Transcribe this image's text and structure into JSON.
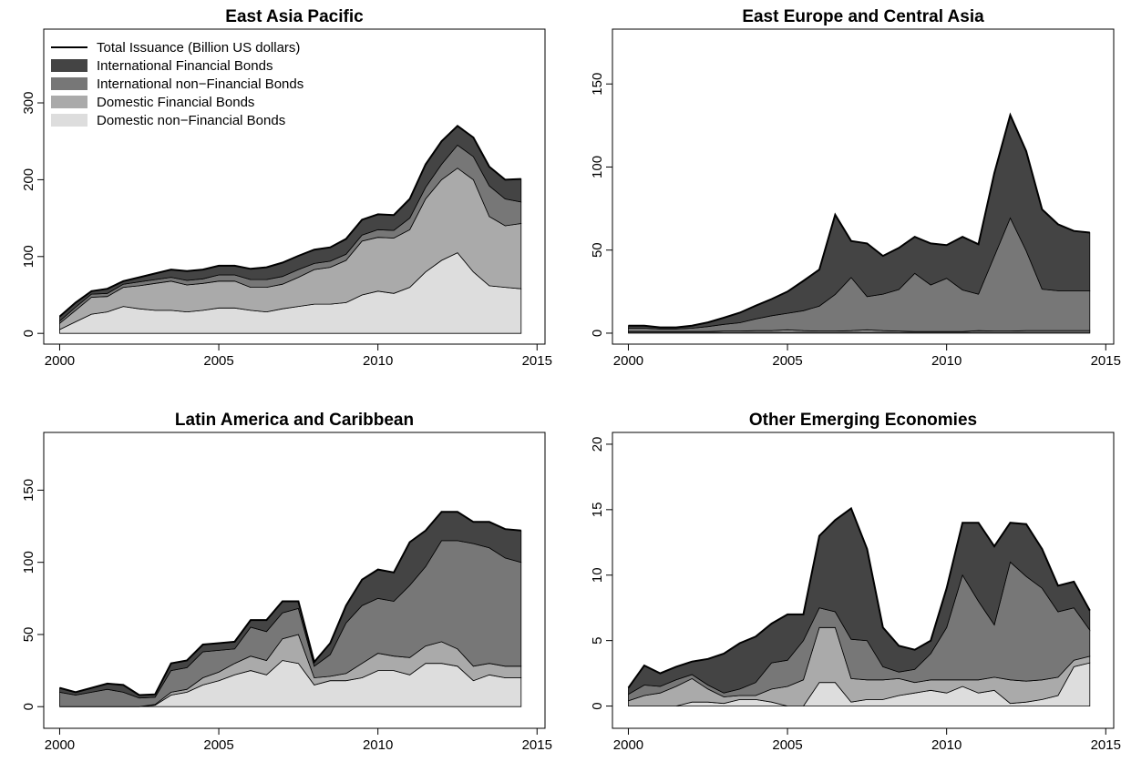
{
  "chart_data": [
    {
      "type": "stacked-area",
      "title": "East Asia Pacific",
      "legend": "topleft",
      "total_name": "Total Issuance (Billion US dollars)",
      "total_color": "#000000",
      "x": [
        2000,
        2000.5,
        2001,
        2001.5,
        2002,
        2002.5,
        2003,
        2003.5,
        2004,
        2004.5,
        2005,
        2005.5,
        2006,
        2006.5,
        2007,
        2007.5,
        2008,
        2008.5,
        2009,
        2009.5,
        2010,
        2010.5,
        2011,
        2011.5,
        2012,
        2012.5,
        2013,
        2013.5,
        2014,
        2014.5
      ],
      "xlim": [
        1999.5,
        2015.25
      ],
      "xticks": [
        2000,
        2005,
        2010,
        2015
      ],
      "ylim": [
        -14,
        396
      ],
      "yticks": [
        0,
        100,
        200,
        300
      ],
      "series": [
        {
          "name": "Domestic non−Financial Bonds",
          "color": "#dddddd",
          "values": [
            5,
            15,
            25,
            28,
            35,
            32,
            30,
            30,
            28,
            30,
            33,
            33,
            30,
            28,
            32,
            35,
            38,
            38,
            40,
            50,
            55,
            52,
            60,
            80,
            95,
            105,
            80,
            62,
            60,
            58
          ]
        },
        {
          "name": "Domestic Financial Bonds",
          "color": "#aaaaaa",
          "values": [
            8,
            15,
            22,
            20,
            25,
            30,
            35,
            38,
            35,
            35,
            35,
            35,
            30,
            32,
            32,
            38,
            45,
            48,
            55,
            70,
            70,
            72,
            75,
            95,
            105,
            110,
            120,
            90,
            80,
            85
          ]
        },
        {
          "name": "International non−Financial Bonds",
          "color": "#777777",
          "values": [
            3,
            4,
            4,
            4,
            4,
            5,
            5,
            5,
            6,
            6,
            8,
            8,
            10,
            10,
            10,
            10,
            8,
            8,
            8,
            8,
            10,
            10,
            15,
            15,
            20,
            30,
            30,
            40,
            35,
            28
          ]
        },
        {
          "name": "International Financial Bonds",
          "color": "#444444",
          "values": [
            6,
            6,
            4,
            6,
            4,
            6,
            8,
            10,
            12,
            12,
            12,
            12,
            14,
            16,
            18,
            18,
            18,
            18,
            20,
            20,
            20,
            20,
            25,
            30,
            30,
            25,
            25,
            25,
            25,
            30
          ]
        }
      ]
    },
    {
      "type": "stacked-area",
      "title": "East Europe and Central Asia",
      "x": [
        2000,
        2000.5,
        2001,
        2001.5,
        2002,
        2002.5,
        2003,
        2003.5,
        2004,
        2004.5,
        2005,
        2005.5,
        2006,
        2006.5,
        2007,
        2007.5,
        2008,
        2008.5,
        2009,
        2009.5,
        2010,
        2010.5,
        2011,
        2011.5,
        2012,
        2012.5,
        2013,
        2013.5,
        2014,
        2014.5
      ],
      "xlim": [
        1999.5,
        2015.25
      ],
      "xticks": [
        2000,
        2005,
        2010,
        2015
      ],
      "ylim": [
        -6.6,
        183
      ],
      "yticks": [
        0,
        50,
        100,
        150
      ],
      "series": [
        {
          "color": "#dddddd",
          "values": [
            0.5,
            0.5,
            0.5,
            0.5,
            0.5,
            0.5,
            0.5,
            0.5,
            0.5,
            0.5,
            0.5,
            0.5,
            0.5,
            0.5,
            0.5,
            0.5,
            0.5,
            0.5,
            0.5,
            0.5,
            0.5,
            0.5,
            0.5,
            0.5,
            0.5,
            0.5,
            0.5,
            0.5,
            0.5,
            0.5
          ]
        },
        {
          "color": "#aaaaaa",
          "values": [
            0.5,
            0.5,
            0.5,
            0.5,
            0.5,
            0.5,
            0.8,
            0.8,
            1,
            1,
            1.5,
            1,
            0.8,
            0.8,
            1,
            1.5,
            1,
            0.8,
            0.5,
            0.5,
            0.5,
            0.5,
            1,
            0.8,
            0.8,
            1,
            1,
            1,
            1,
            1
          ]
        },
        {
          "color": "#777777",
          "values": [
            2,
            2,
            1.5,
            1.5,
            2,
            3,
            4,
            5,
            7,
            9,
            10,
            12,
            15,
            22,
            32,
            20,
            22,
            25,
            35,
            28,
            32,
            25,
            22,
            45,
            68,
            48,
            25,
            24,
            24,
            24
          ]
        },
        {
          "color": "#444444",
          "values": [
            1.5,
            1.5,
            1,
            1,
            1.5,
            2.5,
            4,
            6,
            8,
            10,
            13,
            18,
            22,
            48,
            22,
            32,
            23,
            25,
            22,
            25,
            20,
            32,
            30,
            50,
            62,
            60,
            48,
            40,
            36,
            35
          ]
        }
      ]
    },
    {
      "type": "stacked-area",
      "title": "Latin America and Caribbean",
      "x": [
        2000,
        2000.5,
        2001,
        2001.5,
        2002,
        2002.5,
        2003,
        2003.5,
        2004,
        2004.5,
        2005,
        2005.5,
        2006,
        2006.5,
        2007,
        2007.5,
        2008,
        2008.5,
        2009,
        2009.5,
        2010,
        2010.5,
        2011,
        2011.5,
        2012,
        2012.5,
        2013,
        2013.5,
        2014,
        2014.5
      ],
      "xlim": [
        1999.5,
        2015.25
      ],
      "xticks": [
        2000,
        2005,
        2010,
        2015
      ],
      "ylim": [
        -15,
        190
      ],
      "yticks": [
        0,
        50,
        100,
        150
      ],
      "series": [
        {
          "color": "#dddddd",
          "values": [
            0,
            0,
            0,
            0,
            0,
            0,
            1,
            8,
            10,
            15,
            18,
            22,
            25,
            22,
            32,
            30,
            15,
            18,
            18,
            20,
            25,
            25,
            22,
            30,
            30,
            28,
            18,
            22,
            20,
            20
          ]
        },
        {
          "color": "#aaaaaa",
          "values": [
            0,
            0,
            0,
            0,
            0,
            0,
            0.5,
            2,
            2,
            5,
            6,
            8,
            10,
            10,
            15,
            20,
            5,
            3,
            5,
            10,
            12,
            10,
            12,
            12,
            15,
            12,
            10,
            8,
            8,
            8
          ]
        },
        {
          "color": "#777777",
          "values": [
            10,
            8,
            10,
            12,
            10,
            6,
            5,
            15,
            15,
            18,
            15,
            10,
            20,
            20,
            18,
            18,
            8,
            15,
            35,
            40,
            38,
            38,
            50,
            55,
            70,
            75,
            85,
            80,
            75,
            72
          ]
        },
        {
          "color": "#444444",
          "values": [
            3,
            2,
            3,
            4,
            5,
            2,
            2,
            5,
            5,
            5,
            5,
            5,
            5,
            8,
            8,
            5,
            3,
            8,
            12,
            18,
            20,
            20,
            30,
            25,
            20,
            20,
            15,
            18,
            20,
            22
          ]
        }
      ]
    },
    {
      "type": "stacked-area",
      "title": "Other Emerging Economies",
      "x": [
        2000,
        2000.5,
        2001,
        2001.5,
        2002,
        2002.5,
        2003,
        2003.5,
        2004,
        2004.5,
        2005,
        2005.5,
        2006,
        2006.5,
        2007,
        2007.5,
        2008,
        2008.5,
        2009,
        2009.5,
        2010,
        2010.5,
        2011,
        2011.5,
        2012,
        2012.5,
        2013,
        2013.5,
        2014,
        2014.5
      ],
      "xlim": [
        1999.5,
        2015.25
      ],
      "xticks": [
        2000,
        2005,
        2010,
        2015
      ],
      "ylim": [
        -1.7,
        20.9
      ],
      "yticks": [
        0,
        5,
        10,
        15,
        20
      ],
      "series": [
        {
          "color": "#dddddd",
          "values": [
            0,
            0,
            0,
            0,
            0.3,
            0.3,
            0.2,
            0.5,
            0.5,
            0.3,
            0,
            0,
            1.8,
            1.8,
            0.3,
            0.5,
            0.5,
            0.8,
            1,
            1.2,
            1,
            1.5,
            1,
            1.2,
            0.2,
            0.3,
            0.5,
            0.8,
            3,
            3.3
          ]
        },
        {
          "color": "#aaaaaa",
          "values": [
            0.4,
            0.8,
            1,
            1.5,
            1.8,
            1,
            0.5,
            0.3,
            0.3,
            1,
            1.5,
            2,
            4.2,
            4.2,
            1.8,
            1.5,
            1.5,
            1.3,
            0.8,
            0.8,
            1,
            0.5,
            1,
            1,
            1.8,
            1.6,
            1.5,
            1.4,
            0.5,
            0.5
          ]
        },
        {
          "color": "#777777",
          "values": [
            0.5,
            0.8,
            0.5,
            0.5,
            0.3,
            0.3,
            0.3,
            0.5,
            1,
            2,
            2,
            3,
            1.5,
            1.2,
            3,
            3,
            1,
            0.5,
            1,
            2,
            4,
            8,
            6,
            4,
            9,
            8,
            7,
            5,
            4,
            2
          ]
        },
        {
          "color": "#444444",
          "values": [
            0.5,
            1.5,
            1,
            1,
            1,
            2,
            3,
            3.5,
            3.5,
            3,
            3.5,
            2,
            5.5,
            7,
            10,
            7,
            3,
            2,
            1.5,
            1,
            3,
            4,
            6,
            6,
            3,
            4,
            3,
            2,
            2,
            1.5
          ]
        }
      ]
    }
  ]
}
